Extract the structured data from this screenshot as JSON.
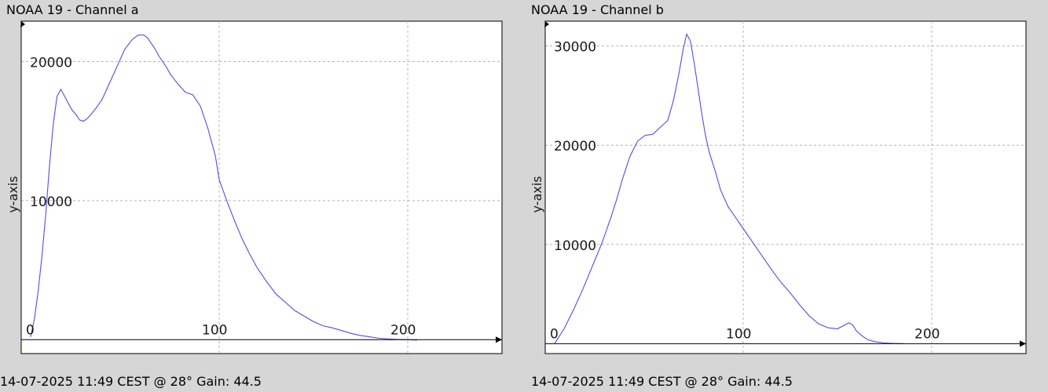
{
  "chart_data": [
    {
      "type": "line",
      "title": "NOAA 19 - Channel a",
      "footer": "14-07-2025 11:49 CEST @ 28° Gain: 44.5",
      "ylabel": "y-axis",
      "xlabel": "",
      "xlim": [
        -5,
        250
      ],
      "ylim": [
        -1000,
        22900
      ],
      "x_ticks": [
        0,
        100,
        200
      ],
      "y_ticks": [
        10000,
        20000
      ],
      "grid": true,
      "series": [
        {
          "color": "#4f4fdc",
          "x": [
            0,
            2,
            4,
            6,
            8,
            10,
            12,
            14,
            16,
            18,
            20,
            22,
            24,
            26,
            28,
            30,
            32,
            35,
            38,
            42,
            46,
            50,
            54,
            57,
            60,
            62,
            64,
            66,
            68,
            70,
            72,
            74,
            78,
            82,
            86,
            90,
            94,
            98,
            100,
            104,
            108,
            112,
            116,
            120,
            125,
            130,
            135,
            140,
            145,
            150,
            155,
            160,
            165,
            170,
            175,
            180,
            185,
            190,
            195,
            200,
            205
          ],
          "values": [
            200,
            1500,
            3500,
            6000,
            9000,
            12500,
            15500,
            17500,
            18000,
            17500,
            17000,
            16500,
            16200,
            15800,
            15700,
            15900,
            16200,
            16700,
            17300,
            18500,
            19700,
            20900,
            21600,
            21900,
            21900,
            21700,
            21300,
            20900,
            20400,
            20000,
            19600,
            19100,
            18400,
            17800,
            17600,
            16800,
            15200,
            13200,
            11500,
            10000,
            8600,
            7300,
            6200,
            5200,
            4200,
            3300,
            2700,
            2100,
            1700,
            1300,
            1000,
            850,
            650,
            450,
            300,
            200,
            100,
            50,
            20,
            0,
            -30
          ]
        }
      ]
    },
    {
      "type": "line",
      "title": "NOAA 19 - Channel b",
      "footer": "14-07-2025 11:49 CEST @ 28° Gain: 44.5",
      "ylabel": "y-axis",
      "xlabel": "",
      "xlim": [
        -5,
        250
      ],
      "ylim": [
        -1000,
        32500
      ],
      "x_ticks": [
        0,
        100,
        200
      ],
      "y_ticks": [
        10000,
        20000,
        30000
      ],
      "grid": true,
      "series": [
        {
          "color": "#4f4fdc",
          "x": [
            0,
            5,
            10,
            15,
            20,
            25,
            30,
            33,
            36,
            40,
            44,
            48,
            52,
            56,
            60,
            63,
            66,
            68,
            70,
            72,
            74,
            76,
            78,
            80,
            82,
            85,
            88,
            92,
            96,
            100,
            104,
            108,
            112,
            116,
            120,
            125,
            130,
            135,
            140,
            145,
            150,
            153,
            156,
            158,
            160,
            163,
            166,
            170,
            175,
            180,
            185
          ],
          "values": [
            0,
            1500,
            3400,
            5500,
            7800,
            10100,
            12800,
            14600,
            16600,
            18900,
            20400,
            21000,
            21100,
            21800,
            22500,
            24500,
            27300,
            29500,
            31200,
            30500,
            28300,
            25800,
            23200,
            21000,
            19300,
            17500,
            15500,
            13800,
            12700,
            11600,
            10500,
            9400,
            8300,
            7200,
            6200,
            5100,
            3900,
            2800,
            2000,
            1600,
            1500,
            1800,
            2100,
            1900,
            1300,
            800,
            400,
            200,
            70,
            20,
            0
          ]
        }
      ]
    }
  ]
}
